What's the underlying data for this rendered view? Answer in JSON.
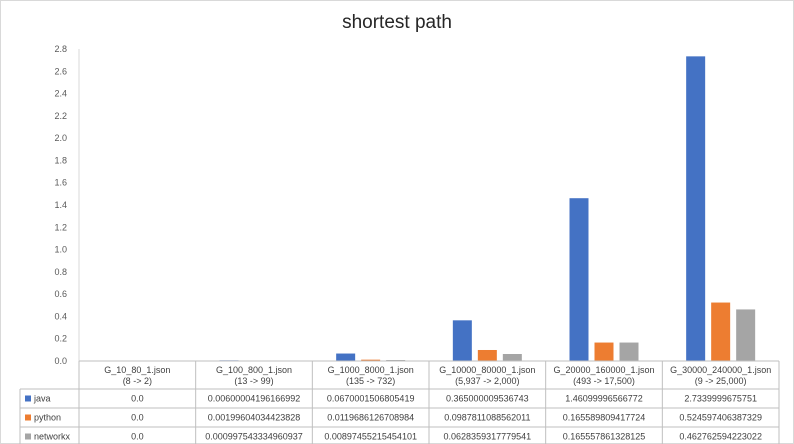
{
  "chart_data": {
    "type": "bar",
    "title": "shortest path",
    "xlabel": "",
    "ylabel": "",
    "ylim": [
      0,
      2.8
    ],
    "yticks": [
      "0.0",
      "0.2",
      "0.4",
      "0.6",
      "0.8",
      "1.0",
      "1.2",
      "1.4",
      "1.6",
      "1.8",
      "2.0",
      "2.2",
      "2.4",
      "2.6",
      "2.8"
    ],
    "grid": false,
    "legend": "data-table",
    "categories": [
      {
        "name": "G_10_80_1.json",
        "sub": "(8 -> 2)"
      },
      {
        "name": "G_100_800_1.json",
        "sub": "(13 -> 99)"
      },
      {
        "name": "G_1000_8000_1.json",
        "sub": "(135 -> 732)"
      },
      {
        "name": "G_10000_80000_1.json",
        "sub": "(5,937 -> 2,000)"
      },
      {
        "name": "G_20000_160000_1.json",
        "sub": "(493 -> 17,500)"
      },
      {
        "name": "G_30000_240000_1.json",
        "sub": "(9 -> 25,000)"
      }
    ],
    "series": [
      {
        "name": "java",
        "color": "#4472C4",
        "values": [
          0.0,
          0.006000041961669922,
          0.06700015068054199,
          0.365000009536743,
          1.46099996566772,
          2.7339999675751
        ],
        "labels": [
          "0.0",
          "0.00600004196166992",
          "0.0670001506805419",
          "0.365000009536743",
          "1.46099996566772",
          "2.7339999675751"
        ]
      },
      {
        "name": "python",
        "color": "#ED7D31",
        "values": [
          0.0,
          0.00199604034423828,
          0.0119686126708984,
          0.0987811088562011,
          0.165589809417724,
          0.524597406387329
        ],
        "labels": [
          "0.0",
          "0.00199604034423828",
          "0.0119686126708984",
          "0.0987811088562011",
          "0.165589809417724",
          "0.524597406387329"
        ]
      },
      {
        "name": "networkx",
        "color": "#A5A5A5",
        "values": [
          0.0,
          0.000997543334960937,
          0.00897455215454101,
          0.0628359317779541,
          0.165557861328125,
          0.462762594223022
        ],
        "labels": [
          "0.0",
          "0.000997543334960937",
          "0.00897455215454101",
          "0.0628359317779541",
          "0.165557861328125",
          "0.462762594223022"
        ]
      }
    ]
  }
}
